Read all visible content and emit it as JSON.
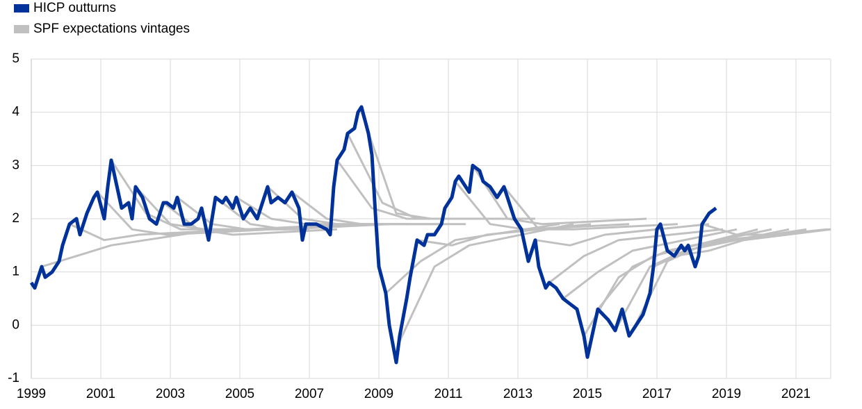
{
  "chart_data": {
    "type": "line",
    "xlim": [
      1999,
      2022
    ],
    "xticks": [
      1999,
      2001,
      2003,
      2005,
      2007,
      2009,
      2011,
      2013,
      2015,
      2017,
      2019,
      2021
    ],
    "ylim": [
      -1,
      5
    ],
    "yticks": [
      -1,
      0,
      1,
      2,
      3,
      4,
      5
    ],
    "grid": true,
    "legend": "top-left",
    "series": [
      {
        "name": "HICP outturns",
        "color": "#003299",
        "x": [
          1999.0,
          1999.1,
          1999.3,
          1999.4,
          1999.6,
          1999.8,
          1999.9,
          2000.1,
          2000.3,
          2000.4,
          2000.6,
          2000.8,
          2000.9,
          2001.1,
          2001.2,
          2001.3,
          2001.5,
          2001.6,
          2001.8,
          2001.9,
          2002.0,
          2002.2,
          2002.4,
          2002.6,
          2002.8,
          2002.9,
          2003.1,
          2003.2,
          2003.4,
          2003.6,
          2003.8,
          2003.9,
          2004.1,
          2004.3,
          2004.5,
          2004.6,
          2004.8,
          2004.9,
          2005.1,
          2005.3,
          2005.5,
          2005.6,
          2005.8,
          2005.9,
          2006.1,
          2006.3,
          2006.5,
          2006.7,
          2006.8,
          2006.9,
          2007.2,
          2007.5,
          2007.6,
          2007.7,
          2007.8,
          2008.0,
          2008.1,
          2008.3,
          2008.4,
          2008.5,
          2008.7,
          2008.8,
          2008.9,
          2009.0,
          2009.2,
          2009.3,
          2009.5,
          2009.6,
          2009.8,
          2009.9,
          2010.1,
          2010.3,
          2010.4,
          2010.6,
          2010.8,
          2010.9,
          2011.1,
          2011.2,
          2011.3,
          2011.6,
          2011.7,
          2011.9,
          2012.0,
          2012.2,
          2012.4,
          2012.6,
          2012.8,
          2012.9,
          2013.1,
          2013.3,
          2013.5,
          2013.6,
          2013.8,
          2013.9,
          2014.1,
          2014.3,
          2014.5,
          2014.7,
          2014.9,
          2015.0,
          2015.2,
          2015.3,
          2015.6,
          2015.8,
          2016.0,
          2016.2,
          2016.3,
          2016.6,
          2016.8,
          2016.9,
          2017.0,
          2017.1,
          2017.3,
          2017.5,
          2017.7,
          2017.8,
          2017.9,
          2018.1,
          2018.2,
          2018.3,
          2018.5,
          2018.7
        ],
        "values": [
          0.8,
          0.7,
          1.1,
          0.9,
          1.0,
          1.2,
          1.5,
          1.9,
          2.0,
          1.7,
          2.1,
          2.4,
          2.5,
          2.0,
          2.6,
          3.1,
          2.5,
          2.2,
          2.3,
          2.0,
          2.6,
          2.4,
          2.0,
          1.9,
          2.3,
          2.3,
          2.2,
          2.4,
          1.9,
          1.9,
          2.0,
          2.2,
          1.6,
          2.4,
          2.3,
          2.4,
          2.2,
          2.4,
          2.0,
          2.2,
          2.0,
          2.2,
          2.6,
          2.3,
          2.4,
          2.3,
          2.5,
          2.2,
          1.6,
          1.9,
          1.9,
          1.8,
          1.7,
          2.6,
          3.1,
          3.3,
          3.6,
          3.7,
          4.0,
          4.1,
          3.6,
          3.2,
          2.1,
          1.1,
          0.6,
          0.0,
          -0.7,
          -0.2,
          0.5,
          0.9,
          1.6,
          1.5,
          1.7,
          1.7,
          1.9,
          2.2,
          2.4,
          2.7,
          2.8,
          2.5,
          3.0,
          2.9,
          2.7,
          2.6,
          2.4,
          2.6,
          2.2,
          2.0,
          1.8,
          1.2,
          1.6,
          1.1,
          0.7,
          0.8,
          0.7,
          0.5,
          0.4,
          0.3,
          -0.2,
          -0.6,
          0.0,
          0.3,
          0.1,
          -0.1,
          0.3,
          -0.2,
          -0.1,
          0.2,
          0.6,
          1.1,
          1.8,
          1.9,
          1.4,
          1.3,
          1.5,
          1.4,
          1.5,
          1.1,
          1.3,
          1.9,
          2.1,
          2.2
        ]
      },
      {
        "name": "SPF expectations vintages",
        "color": "#c0c0c0",
        "lines": [
          {
            "x": [
              1999.3,
              2000.3,
              2001.3,
              2004.3
            ],
            "values": [
              1.1,
              1.3,
              1.5,
              1.8
            ]
          },
          {
            "x": [
              2000.1,
              2001.1,
              2002.1,
              2005.1
            ],
            "values": [
              1.9,
              1.6,
              1.7,
              1.8
            ]
          },
          {
            "x": [
              2000.9,
              2001.9,
              2002.9,
              2005.9
            ],
            "values": [
              2.5,
              1.8,
              1.7,
              1.8
            ]
          },
          {
            "x": [
              2001.3,
              2002.3,
              2003.3,
              2006.3
            ],
            "values": [
              3.1,
              2.1,
              1.8,
              1.8
            ]
          },
          {
            "x": [
              2002.0,
              2003.0,
              2004.0,
              2007.0
            ],
            "values": [
              2.6,
              1.9,
              1.8,
              1.8
            ]
          },
          {
            "x": [
              2002.8,
              2003.8,
              2004.8,
              2007.8
            ],
            "values": [
              2.3,
              1.8,
              1.7,
              1.8
            ]
          },
          {
            "x": [
              2003.2,
              2004.2,
              2005.2,
              2008.2
            ],
            "values": [
              2.4,
              1.9,
              1.8,
              1.9
            ]
          },
          {
            "x": [
              2004.3,
              2005.3,
              2006.3,
              2009.3
            ],
            "values": [
              2.4,
              1.9,
              1.8,
              1.9
            ]
          },
          {
            "x": [
              2004.9,
              2005.9,
              2006.9,
              2009.9
            ],
            "values": [
              2.4,
              2.0,
              1.9,
              1.9
            ]
          },
          {
            "x": [
              2005.8,
              2006.8,
              2007.8,
              2010.8
            ],
            "values": [
              2.6,
              2.0,
              1.9,
              1.9
            ]
          },
          {
            "x": [
              2006.5,
              2007.5,
              2008.5,
              2011.5
            ],
            "values": [
              2.5,
              2.0,
              1.9,
              1.9
            ]
          },
          {
            "x": [
              2007.8,
              2008.8,
              2009.8,
              2012.8
            ],
            "values": [
              3.1,
              2.2,
              2.0,
              2.0
            ]
          },
          {
            "x": [
              2008.1,
              2009.1,
              2010.1,
              2013.1
            ],
            "values": [
              3.6,
              2.3,
              2.0,
              2.0
            ]
          },
          {
            "x": [
              2008.5,
              2009.5,
              2010.5,
              2013.5
            ],
            "values": [
              4.0,
              2.1,
              2.0,
              2.0
            ]
          },
          {
            "x": [
              2009.2,
              2010.2,
              2011.2,
              2014.2
            ],
            "values": [
              0.6,
              1.2,
              1.6,
              1.9
            ]
          },
          {
            "x": [
              2009.6,
              2010.6,
              2011.6,
              2014.6
            ],
            "values": [
              -0.3,
              1.1,
              1.5,
              1.9
            ]
          },
          {
            "x": [
              2010.1,
              2011.1,
              2012.1,
              2015.1
            ],
            "values": [
              1.6,
              1.5,
              1.7,
              1.9
            ]
          },
          {
            "x": [
              2011.2,
              2012.2,
              2013.2,
              2016.2
            ],
            "values": [
              2.7,
              1.9,
              1.8,
              1.9
            ]
          },
          {
            "x": [
              2011.7,
              2012.7,
              2013.7,
              2016.7
            ],
            "values": [
              3.0,
              2.0,
              1.9,
              2.0
            ]
          },
          {
            "x": [
              2012.6,
              2013.6,
              2014.6,
              2017.6
            ],
            "values": [
              2.6,
              1.8,
              1.8,
              1.9
            ]
          },
          {
            "x": [
              2013.5,
              2014.5,
              2015.5,
              2018.5
            ],
            "values": [
              1.6,
              1.5,
              1.7,
              1.9
            ]
          },
          {
            "x": [
              2013.9,
              2014.9,
              2015.9,
              2018.9
            ],
            "values": [
              0.8,
              1.3,
              1.6,
              1.8
            ]
          },
          {
            "x": [
              2014.3,
              2015.3,
              2016.3,
              2019.3
            ],
            "values": [
              0.5,
              1.0,
              1.4,
              1.8
            ]
          },
          {
            "x": [
              2014.9,
              2015.9,
              2016.9,
              2019.9
            ],
            "values": [
              -0.2,
              0.9,
              1.3,
              1.8
            ]
          },
          {
            "x": [
              2015.3,
              2016.3,
              2017.3,
              2020.3
            ],
            "values": [
              0.3,
              1.1,
              1.4,
              1.8
            ]
          },
          {
            "x": [
              2015.8,
              2016.8,
              2017.8,
              2020.8
            ],
            "values": [
              -0.1,
              1.1,
              1.4,
              1.8
            ]
          },
          {
            "x": [
              2016.3,
              2017.3,
              2018.3,
              2021.3
            ],
            "values": [
              -0.1,
              1.2,
              1.5,
              1.8
            ]
          },
          {
            "x": [
              2016.9,
              2017.9,
              2018.9,
              2021.9
            ],
            "values": [
              1.1,
              1.4,
              1.6,
              1.8
            ]
          },
          {
            "x": [
              2017.5,
              2018.5,
              2019.5,
              2022.0
            ],
            "values": [
              1.3,
              1.4,
              1.6,
              1.8
            ]
          },
          {
            "x": [
              2018.3,
              2019.3,
              2020.3,
              2022.0
            ],
            "values": [
              1.9,
              1.7,
              1.7,
              1.8
            ]
          }
        ]
      }
    ]
  }
}
